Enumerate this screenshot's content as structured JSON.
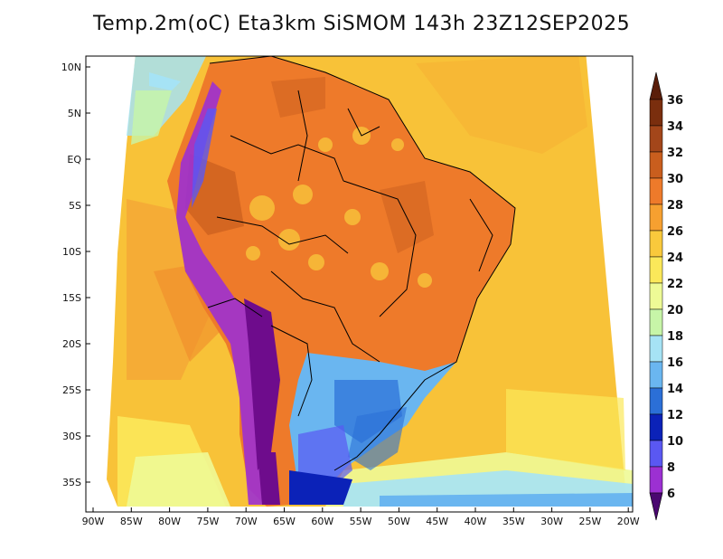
{
  "title": "Temp.2m(oC) Eta3km SiSMOM 143h 23Z12SEP2025",
  "map": {
    "variable": "2 m temperature",
    "region": "South America",
    "lat_ticks": [
      "10N",
      "5N",
      "EQ",
      "5S",
      "10S",
      "15S",
      "20S",
      "25S",
      "30S",
      "35S"
    ],
    "lon_ticks": [
      "90W",
      "85W",
      "80W",
      "75W",
      "70W",
      "65W",
      "60W",
      "55W",
      "50W",
      "45W",
      "40W",
      "35W",
      "30W",
      "25W",
      "20W"
    ]
  },
  "colorbar": {
    "labels": [
      "36",
      "34",
      "32",
      "30",
      "28",
      "26",
      "24",
      "22",
      "20",
      "18",
      "16",
      "14",
      "12",
      "10",
      "8",
      "6"
    ],
    "colors": [
      "#7a2e0e",
      "#a3461a",
      "#c95e1e",
      "#ee7a2a",
      "#f6a030",
      "#f9c93c",
      "#fbe85a",
      "#eefa96",
      "#c7f5a8",
      "#a6e3f5",
      "#6ab6f0",
      "#2b6fd7",
      "#0b22b8",
      "#5a58f2",
      "#9c30d2",
      "#6e0c8c"
    ],
    "top_color": "#5a1e0a",
    "bottom_color": "#4a0870"
  },
  "legend_palette": {
    "ocean_warm": "#f8c238",
    "ocean_hot": "#f6a030",
    "land_hot": "#ee7a2a",
    "andes_cold": "#6e0c8c",
    "south_cool": "#6ab6f0"
  }
}
